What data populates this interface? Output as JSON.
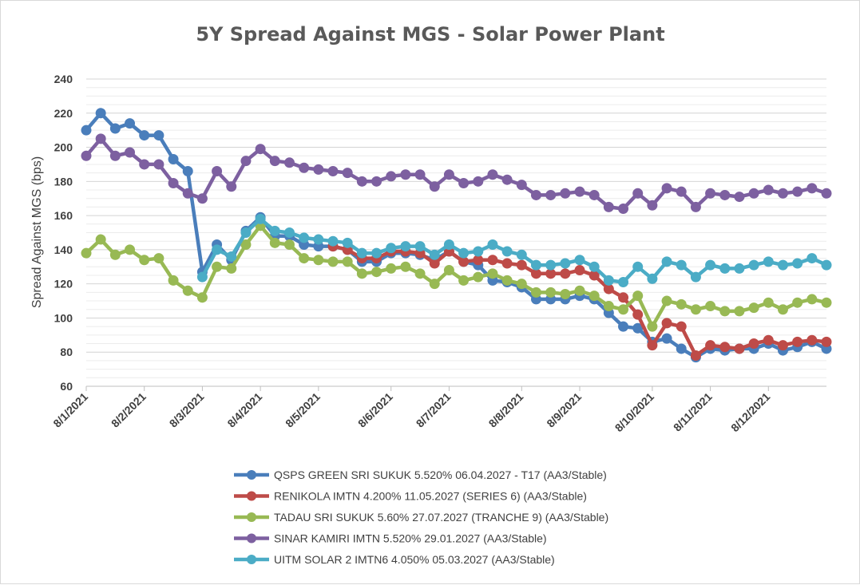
{
  "chart_data": {
    "type": "line",
    "title": "5Y Spread Against MGS - Solar Power Plant",
    "xlabel": "",
    "ylabel": "Spread Against MGS (bps)",
    "ylim": [
      60,
      240
    ],
    "y_ticks": [
      60,
      80,
      100,
      120,
      140,
      160,
      180,
      200,
      220,
      240
    ],
    "x_tick_labels": [
      "8/1/2021",
      "8/2/2021",
      "8/3/2021",
      "8/4/2021",
      "8/5/2021",
      "8/6/2021",
      "8/7/2021",
      "8/8/2021",
      "8/9/2021",
      "8/10/2021",
      "8/11/2021",
      "8/12/2021"
    ],
    "x_tick_index": [
      0,
      4,
      8,
      12,
      16,
      21,
      25,
      30,
      34,
      39,
      43,
      47
    ],
    "n_points": 52,
    "grid": true,
    "legend_position": "bottom",
    "series": [
      {
        "name": "QSPS GREEN SRI SUKUK 5.520% 06.04.2027 - T17 (AA3/Stable)",
        "color": "#4a7ebb",
        "values": [
          210,
          220,
          211,
          214,
          207,
          207,
          193,
          186,
          127,
          143,
          134,
          151,
          159,
          148,
          148,
          143,
          142,
          142,
          140,
          133,
          133,
          138,
          138,
          137,
          134,
          139,
          133,
          131,
          122,
          121,
          118,
          111,
          111,
          111,
          113,
          111,
          103,
          95,
          94,
          86,
          88,
          82,
          77,
          82,
          81,
          82,
          82,
          85,
          81,
          83,
          86,
          82
        ]
      },
      {
        "name": "RENIKOLA IMTN 4.200% 11.05.2027 (SERIES 6)  (AA3/Stable)",
        "color": "#be4b48",
        "values": [
          null,
          null,
          null,
          null,
          null,
          null,
          null,
          null,
          null,
          null,
          null,
          null,
          null,
          null,
          null,
          null,
          null,
          142,
          140,
          135,
          135,
          139,
          139,
          138,
          132,
          139,
          133,
          134,
          134,
          132,
          131,
          126,
          126,
          126,
          128,
          125,
          117,
          112,
          102,
          84,
          97,
          95,
          78,
          84,
          83,
          82,
          85,
          87,
          84,
          86,
          87,
          86
        ]
      },
      {
        "name": "TADAU SRI SUKUK 5.60% 27.07.2027 (TRANCHE 9) (AA3/Stable)",
        "color": "#98b954",
        "values": [
          138,
          146,
          137,
          140,
          134,
          135,
          122,
          116,
          112,
          130,
          129,
          143,
          154,
          144,
          143,
          135,
          134,
          133,
          133,
          126,
          127,
          129,
          130,
          126,
          120,
          128,
          122,
          124,
          126,
          122,
          120,
          115,
          115,
          114,
          116,
          113,
          107,
          105,
          113,
          95,
          110,
          108,
          105,
          107,
          104,
          104,
          106,
          109,
          105,
          109,
          111,
          109
        ]
      },
      {
        "name": "SINAR KAMIRI IMTN 5.520% 29.01.2027 (AA3/Stable)",
        "color": "#7d60a0",
        "values": [
          195,
          205,
          195,
          197,
          190,
          190,
          179,
          173,
          170,
          186,
          177,
          192,
          199,
          192,
          191,
          188,
          187,
          186,
          185,
          180,
          180,
          183,
          184,
          184,
          177,
          184,
          179,
          180,
          184,
          181,
          178,
          172,
          172,
          173,
          174,
          172,
          165,
          164,
          173,
          166,
          176,
          174,
          165,
          173,
          172,
          171,
          173,
          175,
          173,
          174,
          176,
          173
        ]
      },
      {
        "name": "UITM SOLAR 2 IMTN6 4.050% 05.03.2027 (AA3/Stable)",
        "color": "#4bacc6",
        "values": [
          null,
          null,
          null,
          null,
          null,
          null,
          null,
          null,
          124,
          140,
          136,
          150,
          158,
          151,
          150,
          147,
          146,
          145,
          144,
          138,
          138,
          141,
          142,
          142,
          137,
          143,
          138,
          139,
          143,
          139,
          137,
          131,
          131,
          132,
          134,
          130,
          122,
          121,
          130,
          123,
          133,
          131,
          124,
          131,
          129,
          129,
          131,
          133,
          131,
          132,
          135,
          131
        ]
      }
    ]
  }
}
